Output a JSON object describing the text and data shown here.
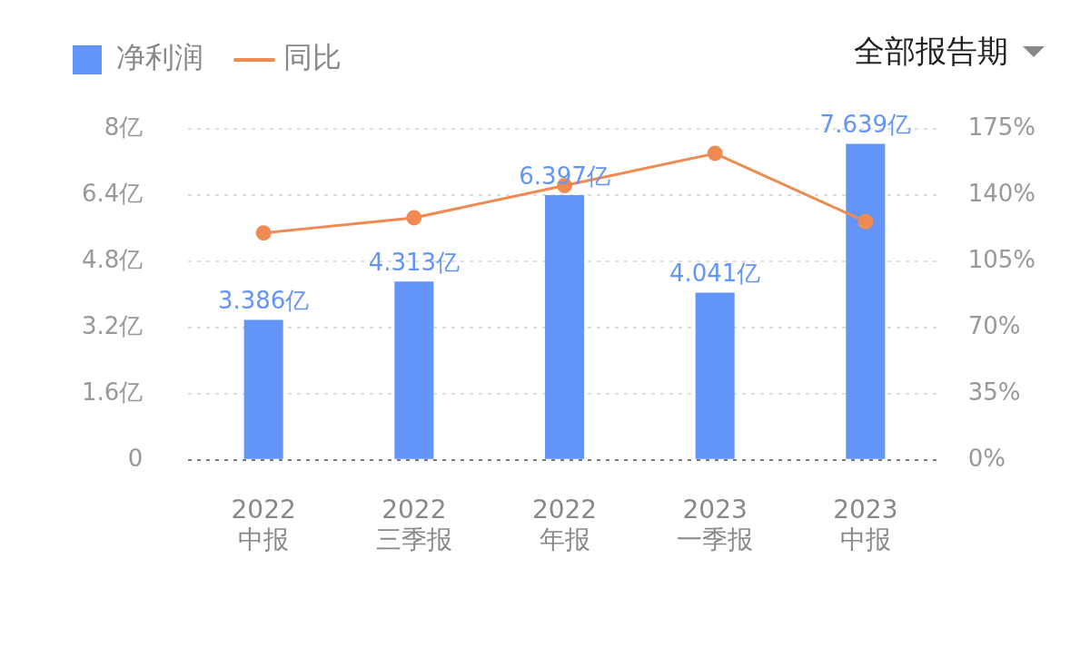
{
  "chart_data": {
    "type": "bar",
    "categories": [
      "2022\n中报",
      "2022\n三季报",
      "2022\n年报",
      "2023\n一季报",
      "2023\n中报"
    ],
    "series": [
      {
        "name": "净利润",
        "color": "#6395f9",
        "values": [
          3.386,
          4.313,
          6.397,
          4.041,
          7.639
        ],
        "value_labels": [
          "3.386亿",
          "4.313亿",
          "6.397亿",
          "4.041亿",
          "7.639亿"
        ]
      },
      {
        "name": "同比",
        "type": "line",
        "axis": "y2",
        "color": "#ee8a52",
        "values": [
          120,
          128,
          145,
          162,
          126
        ]
      }
    ],
    "ylim": [
      0,
      8
    ],
    "yticks": [
      {
        "value": 0,
        "label": "0"
      },
      {
        "value": 1.6,
        "label": "1.6亿"
      },
      {
        "value": 3.2,
        "label": "3.2亿"
      },
      {
        "value": 4.8,
        "label": "4.8亿"
      },
      {
        "value": 6.4,
        "label": "6.4亿"
      },
      {
        "value": 8,
        "label": "8亿"
      }
    ],
    "y2lim": [
      0,
      175
    ],
    "y2ticks": [
      {
        "value": 0,
        "label": "0%"
      },
      {
        "value": 35,
        "label": "35%"
      },
      {
        "value": 70,
        "label": "70%"
      },
      {
        "value": 105,
        "label": "105%"
      },
      {
        "value": 140,
        "label": "140%"
      },
      {
        "value": 175,
        "label": "175%"
      }
    ],
    "grid": "y",
    "legend": "top left",
    "marker": "circle",
    "annotations": [
      "全部报告期"
    ]
  }
}
